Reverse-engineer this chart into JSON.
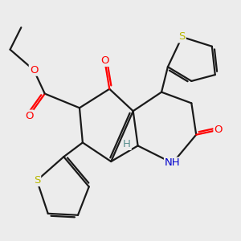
{
  "bg_color": "#ececec",
  "bond_color": "#1a1a1a",
  "bond_width": 1.6,
  "atom_colors": {
    "O": "#ff0000",
    "N": "#0000cd",
    "S": "#b8b800",
    "C": "#1a1a1a",
    "H": "#5a9090"
  },
  "font_size": 9.5
}
